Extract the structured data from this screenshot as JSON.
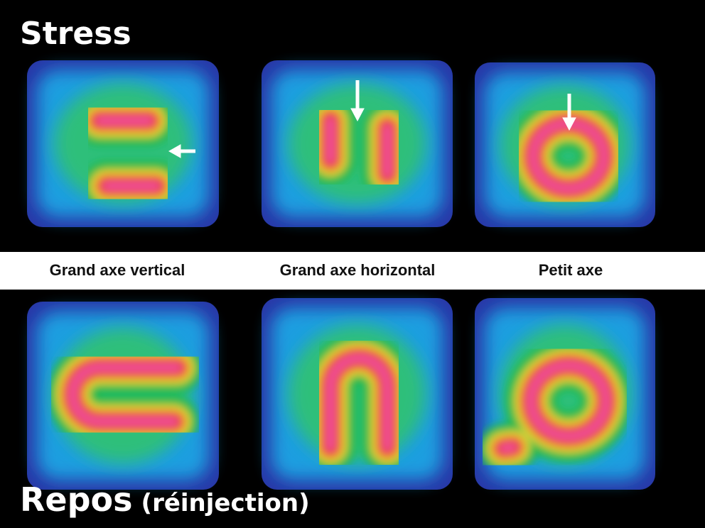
{
  "top_label": "Stress",
  "view_labels": [
    "Grand axe vertical",
    "Grand axe horizontal",
    "Petit axe"
  ],
  "bottom_label": {
    "main": "Repos",
    "note": "(réinjection)"
  }
}
